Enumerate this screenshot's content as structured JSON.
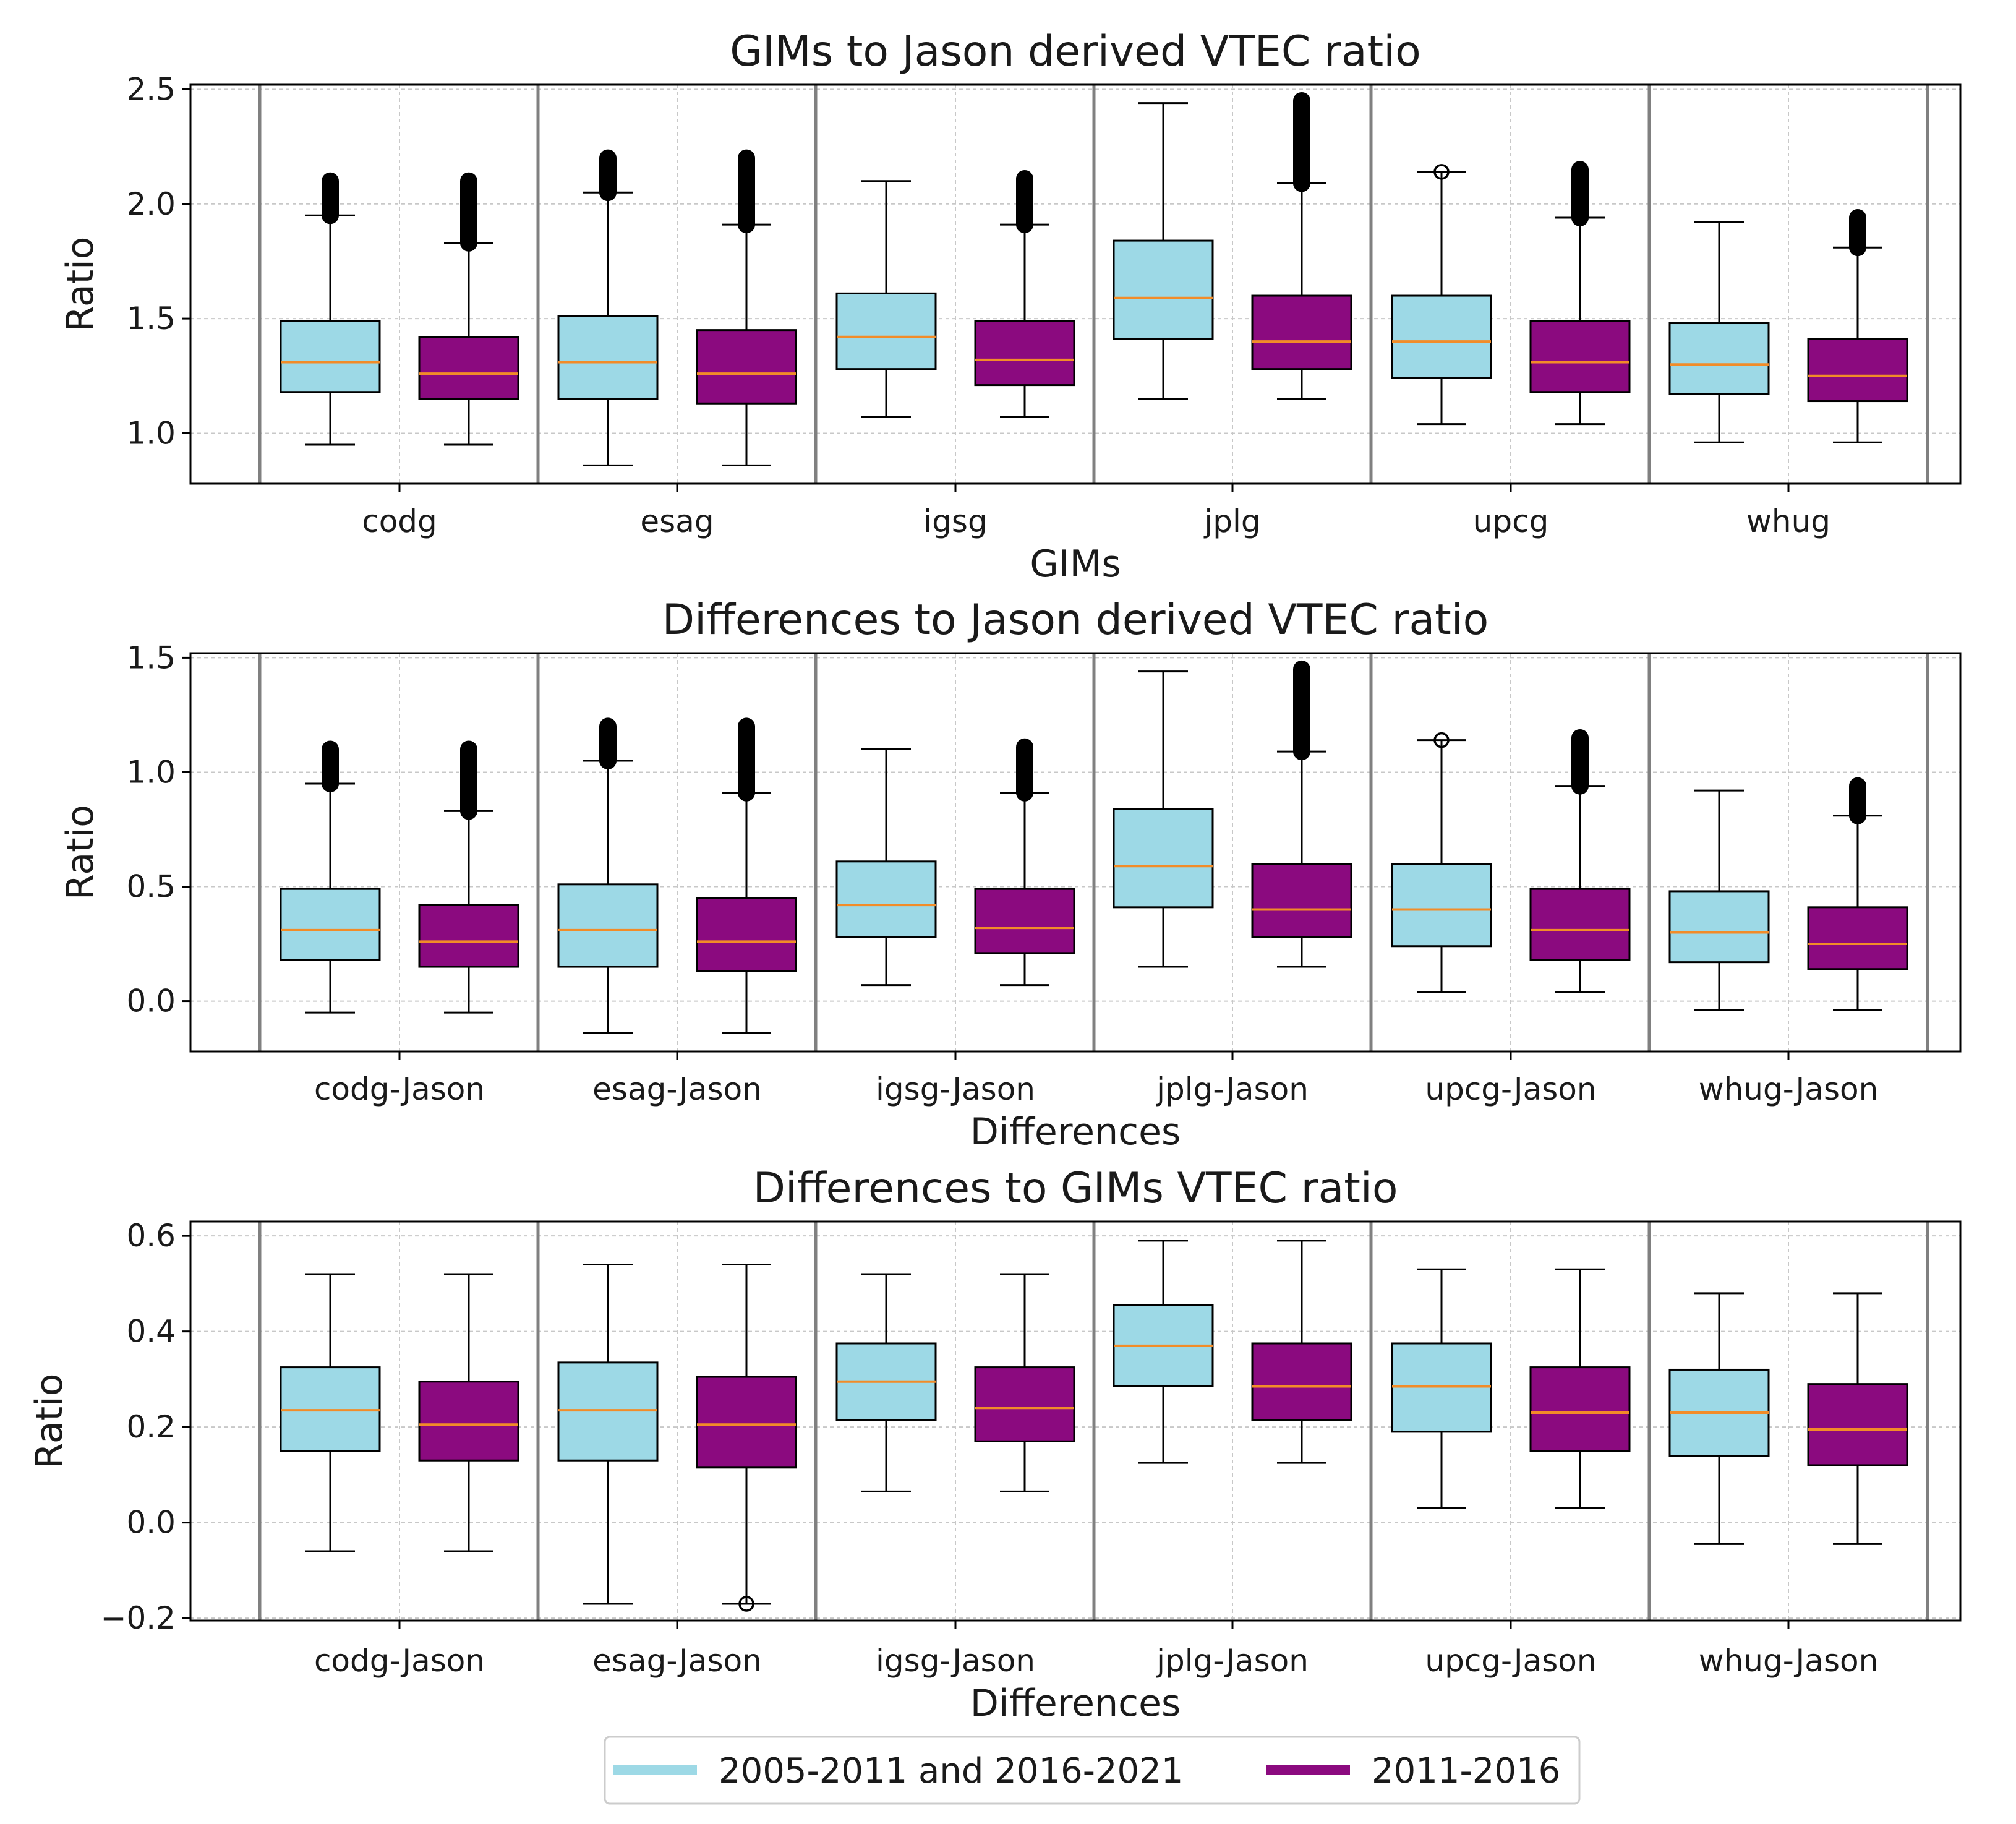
{
  "legend": {
    "items": [
      {
        "label": "2005-2011 and 2016-2021",
        "color": "#9dd9e6"
      },
      {
        "label": "2011-2016",
        "color": "#8b0a7f"
      }
    ]
  },
  "colors": {
    "period1": "#9dd9e6",
    "period2": "#8b0a7f",
    "median": "#f28c28",
    "divider": "#808080",
    "grid": "#c8c8c8"
  },
  "chart_data": [
    {
      "type": "box",
      "title": "GIMs to Jason derived VTEC ratio",
      "xlabel": "GIMs",
      "ylabel": "Ratio",
      "ylim": [
        0.78,
        2.52
      ],
      "yticks": [
        1.0,
        1.5,
        2.0,
        2.5
      ],
      "ytick_labels": [
        "1.0",
        "1.5",
        "2.0",
        "2.5"
      ],
      "categories": [
        "codg",
        "esag",
        "igsg",
        "jplg",
        "upcg",
        "whug"
      ],
      "series": [
        {
          "name": "2005-2011 and 2016-2021",
          "boxes": [
            {
              "whislo": 0.95,
              "q1": 1.18,
              "med": 1.31,
              "q3": 1.49,
              "whishi": 1.95,
              "fliers": [
                1.95,
                2.1
              ]
            },
            {
              "whislo": 0.86,
              "q1": 1.15,
              "med": 1.31,
              "q3": 1.51,
              "whishi": 2.05,
              "fliers": [
                2.05,
                2.2
              ]
            },
            {
              "whislo": 1.07,
              "q1": 1.28,
              "med": 1.42,
              "q3": 1.61,
              "whishi": 2.1,
              "fliers": []
            },
            {
              "whislo": 1.15,
              "q1": 1.41,
              "med": 1.59,
              "q3": 1.84,
              "whishi": 2.44,
              "fliers": []
            },
            {
              "whislo": 1.04,
              "q1": 1.24,
              "med": 1.4,
              "q3": 1.6,
              "whishi": 2.14,
              "fliers": [
                2.14
              ],
              "open": true
            },
            {
              "whislo": 0.96,
              "q1": 1.17,
              "med": 1.3,
              "q3": 1.48,
              "whishi": 1.92,
              "fliers": []
            }
          ]
        },
        {
          "name": "2011-2016",
          "boxes": [
            {
              "whislo": 0.95,
              "q1": 1.15,
              "med": 1.26,
              "q3": 1.42,
              "whishi": 1.83,
              "fliers": [
                1.83,
                2.1
              ]
            },
            {
              "whislo": 0.86,
              "q1": 1.13,
              "med": 1.26,
              "q3": 1.45,
              "whishi": 1.91,
              "fliers": [
                1.91,
                2.2
              ]
            },
            {
              "whislo": 1.07,
              "q1": 1.21,
              "med": 1.32,
              "q3": 1.49,
              "whishi": 1.91,
              "fliers": [
                1.91,
                2.11
              ]
            },
            {
              "whislo": 1.15,
              "q1": 1.28,
              "med": 1.4,
              "q3": 1.6,
              "whishi": 2.09,
              "fliers": [
                2.09,
                2.45
              ]
            },
            {
              "whislo": 1.04,
              "q1": 1.18,
              "med": 1.31,
              "q3": 1.49,
              "whishi": 1.94,
              "fliers": [
                1.94,
                2.15
              ]
            },
            {
              "whislo": 0.96,
              "q1": 1.14,
              "med": 1.25,
              "q3": 1.41,
              "whishi": 1.81,
              "fliers": [
                1.81,
                1.94
              ]
            }
          ]
        }
      ]
    },
    {
      "type": "box",
      "title": "Differences to Jason derived VTEC ratio",
      "xlabel": "Differences",
      "ylabel": "Ratio",
      "ylim": [
        -0.22,
        1.52
      ],
      "yticks": [
        0.0,
        0.5,
        1.0,
        1.5
      ],
      "ytick_labels": [
        "0.0",
        "0.5",
        "1.0",
        "1.5"
      ],
      "categories": [
        "codg-Jason",
        "esag-Jason",
        "igsg-Jason",
        "jplg-Jason",
        "upcg-Jason",
        "whug-Jason"
      ],
      "series": [
        {
          "name": "2005-2011 and 2016-2021",
          "boxes": [
            {
              "whislo": -0.05,
              "q1": 0.18,
              "med": 0.31,
              "q3": 0.49,
              "whishi": 0.95,
              "fliers": [
                0.95,
                1.1
              ]
            },
            {
              "whislo": -0.14,
              "q1": 0.15,
              "med": 0.31,
              "q3": 0.51,
              "whishi": 1.05,
              "fliers": [
                1.05,
                1.2
              ]
            },
            {
              "whislo": 0.07,
              "q1": 0.28,
              "med": 0.42,
              "q3": 0.61,
              "whishi": 1.1,
              "fliers": []
            },
            {
              "whislo": 0.15,
              "q1": 0.41,
              "med": 0.59,
              "q3": 0.84,
              "whishi": 1.44,
              "fliers": []
            },
            {
              "whislo": 0.04,
              "q1": 0.24,
              "med": 0.4,
              "q3": 0.6,
              "whishi": 1.14,
              "fliers": [
                1.14
              ],
              "open": true
            },
            {
              "whislo": -0.04,
              "q1": 0.17,
              "med": 0.3,
              "q3": 0.48,
              "whishi": 0.92,
              "fliers": []
            }
          ]
        },
        {
          "name": "2011-2016",
          "boxes": [
            {
              "whislo": -0.05,
              "q1": 0.15,
              "med": 0.26,
              "q3": 0.42,
              "whishi": 0.83,
              "fliers": [
                0.83,
                1.1
              ]
            },
            {
              "whislo": -0.14,
              "q1": 0.13,
              "med": 0.26,
              "q3": 0.45,
              "whishi": 0.91,
              "fliers": [
                0.91,
                1.2
              ]
            },
            {
              "whislo": 0.07,
              "q1": 0.21,
              "med": 0.32,
              "q3": 0.49,
              "whishi": 0.91,
              "fliers": [
                0.91,
                1.11
              ]
            },
            {
              "whislo": 0.15,
              "q1": 0.28,
              "med": 0.4,
              "q3": 0.6,
              "whishi": 1.09,
              "fliers": [
                1.09,
                1.45
              ]
            },
            {
              "whislo": 0.04,
              "q1": 0.18,
              "med": 0.31,
              "q3": 0.49,
              "whishi": 0.94,
              "fliers": [
                0.94,
                1.15
              ]
            },
            {
              "whislo": -0.04,
              "q1": 0.14,
              "med": 0.25,
              "q3": 0.41,
              "whishi": 0.81,
              "fliers": [
                0.81,
                0.94
              ]
            }
          ]
        }
      ]
    },
    {
      "type": "box",
      "title": "Differences to GIMs VTEC ratio",
      "xlabel": "Differences",
      "ylabel": "Ratio",
      "ylim": [
        -0.205,
        0.63
      ],
      "yticks": [
        -0.2,
        0.0,
        0.2,
        0.4,
        0.6
      ],
      "ytick_labels": [
        "−0.2",
        "0.0",
        "0.2",
        "0.4",
        "0.6"
      ],
      "categories": [
        "codg-Jason",
        "esag-Jason",
        "igsg-Jason",
        "jplg-Jason",
        "upcg-Jason",
        "whug-Jason"
      ],
      "series": [
        {
          "name": "2005-2011 and 2016-2021",
          "boxes": [
            {
              "whislo": -0.06,
              "q1": 0.15,
              "med": 0.235,
              "q3": 0.325,
              "whishi": 0.52,
              "fliers": []
            },
            {
              "whislo": -0.17,
              "q1": 0.13,
              "med": 0.235,
              "q3": 0.335,
              "whishi": 0.54,
              "fliers": []
            },
            {
              "whislo": 0.065,
              "q1": 0.215,
              "med": 0.295,
              "q3": 0.375,
              "whishi": 0.52,
              "fliers": []
            },
            {
              "whislo": 0.125,
              "q1": 0.285,
              "med": 0.37,
              "q3": 0.455,
              "whishi": 0.59,
              "fliers": []
            },
            {
              "whislo": 0.03,
              "q1": 0.19,
              "med": 0.285,
              "q3": 0.375,
              "whishi": 0.53,
              "fliers": []
            },
            {
              "whislo": -0.045,
              "q1": 0.14,
              "med": 0.23,
              "q3": 0.32,
              "whishi": 0.48,
              "fliers": []
            }
          ]
        },
        {
          "name": "2011-2016",
          "boxes": [
            {
              "whislo": -0.06,
              "q1": 0.13,
              "med": 0.205,
              "q3": 0.295,
              "whishi": 0.52,
              "fliers": []
            },
            {
              "whislo": -0.17,
              "q1": 0.115,
              "med": 0.205,
              "q3": 0.305,
              "whishi": 0.54,
              "fliers": [
                -0.17
              ],
              "open": true
            },
            {
              "whislo": 0.065,
              "q1": 0.17,
              "med": 0.24,
              "q3": 0.325,
              "whishi": 0.52,
              "fliers": []
            },
            {
              "whislo": 0.125,
              "q1": 0.215,
              "med": 0.285,
              "q3": 0.375,
              "whishi": 0.59,
              "fliers": []
            },
            {
              "whislo": 0.03,
              "q1": 0.15,
              "med": 0.23,
              "q3": 0.325,
              "whishi": 0.53,
              "fliers": []
            },
            {
              "whislo": -0.045,
              "q1": 0.12,
              "med": 0.195,
              "q3": 0.29,
              "whishi": 0.48,
              "fliers": []
            }
          ]
        }
      ]
    }
  ]
}
